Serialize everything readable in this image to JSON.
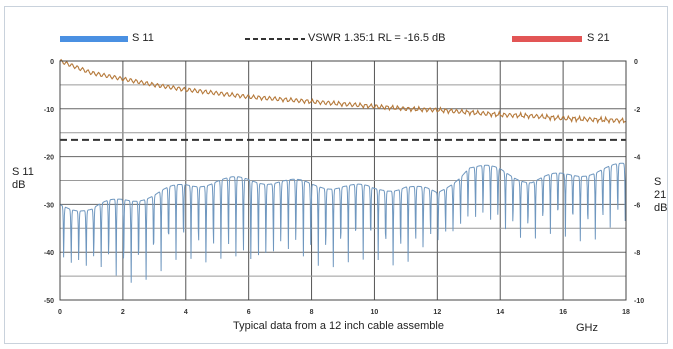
{
  "legend": {
    "s11": "S 11",
    "vswr": "VSWR 1.35:1 RL = -16.5 dB",
    "s21": "S 21"
  },
  "colors": {
    "s11": "#4a90e2",
    "s21": "#e25555",
    "s21_trace": "#b5793a",
    "s11_trace": "#6f97bf",
    "vswr": "#333333",
    "grid": "#888888"
  },
  "axes": {
    "left_label_line1": "S 11",
    "left_label_line2": "dB",
    "right_label_line1": "S 21",
    "right_label_line2": "dB",
    "x_unit": "GHz"
  },
  "caption": "Typical data from a 12 inch cable assemble",
  "chart_data": {
    "type": "line",
    "xlim": [
      0,
      18
    ],
    "ylim_left": [
      -50,
      0
    ],
    "ylim_right": [
      -10,
      0
    ],
    "x_ticks": [
      "0",
      "2",
      "4",
      "6",
      "8",
      "10",
      "12",
      "14",
      "16",
      "18"
    ],
    "y_left_ticks": [
      "0",
      "-10",
      "-20",
      "-30",
      "-40",
      "-50"
    ],
    "y_right_ticks": [
      "0",
      "-2",
      "-4",
      "-6",
      "-8",
      "-10"
    ],
    "grid": true,
    "vswr_limit_db": -16.5,
    "series": [
      {
        "name": "S 21",
        "axis": "right",
        "x": [
          0,
          1,
          2,
          3,
          4,
          5,
          6,
          7,
          8,
          9,
          10,
          11,
          12,
          13,
          14,
          15,
          16,
          17,
          18
        ],
        "y": [
          0,
          -0.5,
          -0.75,
          -1.0,
          -1.2,
          -1.35,
          -1.5,
          -1.6,
          -1.7,
          -1.8,
          -1.9,
          -2.0,
          -2.05,
          -2.15,
          -2.25,
          -2.3,
          -2.4,
          -2.45,
          -2.5
        ]
      },
      {
        "name": "S 11",
        "axis": "left",
        "x": [
          0,
          1,
          2,
          3,
          4,
          5,
          6,
          7,
          8,
          9,
          10,
          11,
          12,
          13,
          14,
          15,
          16,
          17,
          18
        ],
        "peaks": [
          -30,
          -31,
          -29,
          -28,
          -26,
          -25,
          -25,
          -25,
          -26,
          -26,
          -27,
          -26,
          -28,
          -22,
          -23,
          -25,
          -24,
          -23,
          -22
        ],
        "nulls": [
          -44,
          -45,
          -48,
          -45,
          -42,
          -44,
          -46,
          -42,
          -45,
          -43,
          -42,
          -44,
          -40,
          -35,
          -37,
          -38,
          -37,
          -38,
          -36
        ]
      }
    ]
  }
}
